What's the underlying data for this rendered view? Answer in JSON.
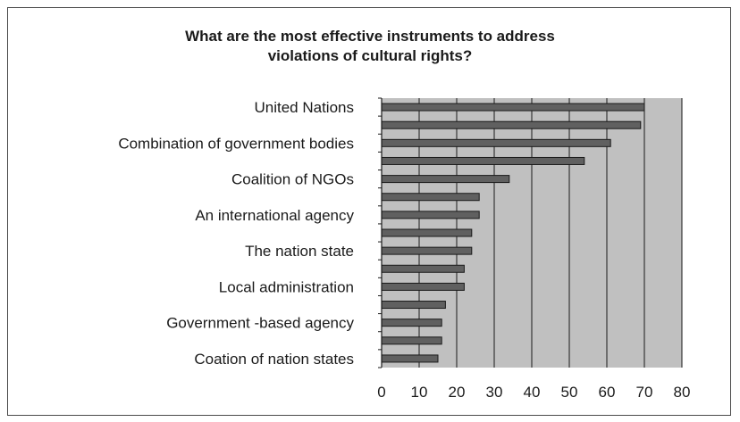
{
  "chart_data": {
    "type": "bar",
    "orientation": "horizontal",
    "title_lines": [
      "What are the most effective instruments to address",
      "violations of cultural rights?"
    ],
    "categories": [
      "United Nations",
      "",
      "Combination of government bodies",
      "",
      "Coalition of NGOs",
      "",
      "An international agency",
      "",
      "The nation state",
      "",
      "Local administration",
      "",
      "Government -based agency",
      "",
      "Coation of nation states"
    ],
    "values": [
      70,
      69,
      61,
      54,
      34,
      26,
      26,
      24,
      24,
      22,
      22,
      17,
      16,
      16,
      15
    ],
    "xlim": [
      0,
      80
    ],
    "xticks": [
      "0",
      "10",
      "20",
      "30",
      "40",
      "50",
      "60",
      "70",
      "80"
    ],
    "grid": true,
    "legend": "none",
    "colors": {
      "plot_background": "#c0c0c0",
      "bar_fill": "#606060",
      "bar_stroke": "#1a1a1a",
      "gridline": "#1a1a1a"
    }
  }
}
